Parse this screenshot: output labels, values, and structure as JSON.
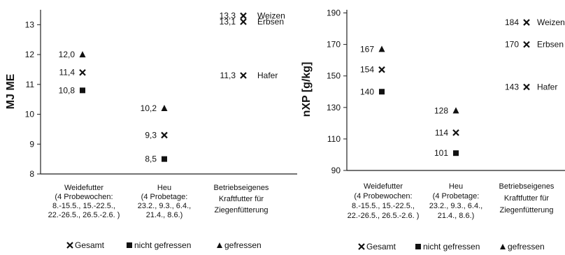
{
  "chart_data": [
    {
      "type": "scatter",
      "ylabel": "MJ ME",
      "ylim": [
        8,
        13.5
      ],
      "yticks": [
        8,
        9,
        10,
        11,
        12,
        13
      ],
      "categories": [
        [
          "Weidefutter",
          "(4 Probewochen:",
          "8.-15.5., 15.-22.5.,",
          "22.-26.5., 26.5.-2.6. )"
        ],
        [
          "Heu",
          "(4 Probetage:",
          "23.2., 9.3., 6.4.,",
          "21.4., 8.6.)"
        ],
        [
          "Betriebseigenes",
          "Kraftfutter für",
          "Ziegenfütterung"
        ]
      ],
      "series": [
        {
          "name": "Gesamt",
          "marker": "x",
          "values": [
            11.4,
            9.3,
            null
          ],
          "labels": [
            "11,4",
            "9,3",
            null
          ]
        },
        {
          "name": "nicht gefressen",
          "marker": "square",
          "values": [
            10.8,
            8.5,
            null
          ],
          "labels": [
            "10,8",
            "8,5",
            null
          ]
        },
        {
          "name": "gefressen",
          "marker": "triangle",
          "values": [
            12.0,
            10.2,
            null
          ],
          "labels": [
            "12,0",
            "10,2",
            null
          ]
        }
      ],
      "feed_points": [
        {
          "name": "Weizen",
          "value": 13.3,
          "label": "13,3"
        },
        {
          "name": "Erbsen",
          "value": 13.1,
          "label": "13,1"
        },
        {
          "name": "Hafer",
          "value": 11.3,
          "label": "11,3"
        }
      ],
      "legend": [
        "Gesamt",
        "nicht gefressen",
        "gefressen"
      ]
    },
    {
      "type": "scatter",
      "ylabel": "nXP  [g/kg]",
      "ylim": [
        90,
        192
      ],
      "yticks": [
        90,
        110,
        130,
        150,
        170,
        190
      ],
      "categories": [
        [
          "Weidefutter",
          "(4 Probewochen:",
          "8.-15.5., 15.-22.5.,",
          "22.-26.5., 26.5.-2.6. )"
        ],
        [
          "Heu",
          "(4 Probetage:",
          "23.2., 9.3., 6.4.,",
          "21.4., 8.6.)"
        ],
        [
          "Betriebseigenes",
          "Kraftfutter für",
          "Ziegenfütterung"
        ]
      ],
      "series": [
        {
          "name": "Gesamt",
          "marker": "x",
          "values": [
            154,
            114,
            null
          ],
          "labels": [
            "154",
            "114",
            null
          ]
        },
        {
          "name": "nicht gefressen",
          "marker": "square",
          "values": [
            140,
            101,
            null
          ],
          "labels": [
            "140",
            "101",
            null
          ]
        },
        {
          "name": "gefressen",
          "marker": "triangle",
          "values": [
            167,
            128,
            null
          ],
          "labels": [
            "167",
            "128",
            null
          ]
        }
      ],
      "feed_points": [
        {
          "name": "Weizen",
          "value": 184,
          "label": "184"
        },
        {
          "name": "Erbsen",
          "value": 170,
          "label": "170"
        },
        {
          "name": "Hafer",
          "value": 143,
          "label": "143"
        }
      ],
      "legend": [
        "Gesamt",
        "nicht gefressen",
        "gefressen"
      ]
    }
  ]
}
